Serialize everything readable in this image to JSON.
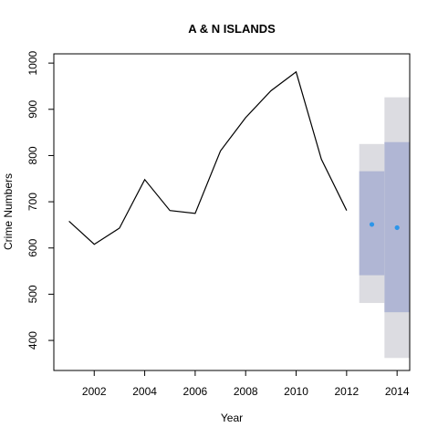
{
  "chart_data": {
    "type": "line",
    "title": "A & N ISLANDS",
    "xlabel": "Year",
    "ylabel": "Crime Numbers",
    "xlim": [
      2000.4,
      2014.5
    ],
    "ylim": [
      335,
      1020
    ],
    "x_ticks": [
      2002,
      2004,
      2006,
      2008,
      2010,
      2012,
      2014
    ],
    "y_ticks": [
      400,
      500,
      600,
      700,
      800,
      900,
      1000
    ],
    "grid": false,
    "series": [
      {
        "kind": "observed",
        "x": [
          2001,
          2002,
          2003,
          2004,
          2005,
          2006,
          2007,
          2008,
          2009,
          2010,
          2011,
          2012
        ],
        "y": [
          658,
          608,
          643,
          748,
          681,
          675,
          810,
          882,
          940,
          981,
          792,
          681
        ]
      }
    ],
    "forecast": [
      {
        "x": 2013,
        "point": 651,
        "lo80": 541,
        "hi80": 766,
        "lo95": 481,
        "hi95": 825
      },
      {
        "x": 2014,
        "point": 644,
        "lo80": 461,
        "hi80": 829,
        "lo95": 362,
        "hi95": 926
      }
    ],
    "colors": {
      "line": "#000000",
      "band80": "#b0b6d4",
      "band95": "#dcdce1",
      "point": "#2d95e9",
      "axis": "#000000"
    }
  }
}
